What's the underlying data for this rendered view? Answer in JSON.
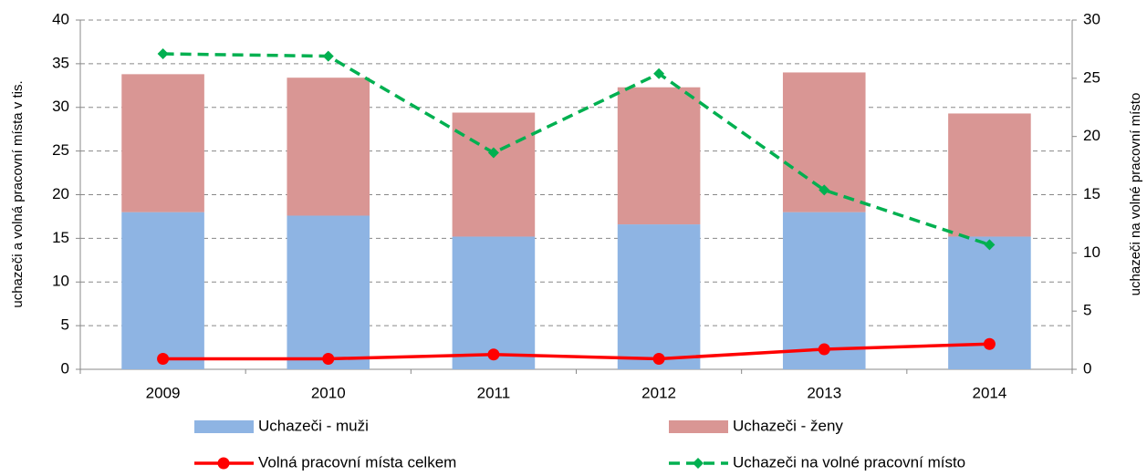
{
  "chart_data": {
    "type": "bar",
    "y_label": "uchazeči a volná pracovní místa v tis.",
    "y2_label": "uchazeči na volné pracovní místo",
    "categories": [
      "2009",
      "2010",
      "2011",
      "2012",
      "2013",
      "2014"
    ],
    "series": [
      {
        "name": "Uchazeči - muži",
        "type": "bar",
        "color": "#8eb4e3",
        "values": [
          18,
          17.6,
          15.2,
          16.6,
          18,
          15.2
        ]
      },
      {
        "name": "Uchazeči - ženy",
        "type": "bar",
        "color": "#d99694",
        "values": [
          15.8,
          15.8,
          14.2,
          15.7,
          16.0,
          14.1
        ]
      },
      {
        "name": "Volná pracovní místa celkem",
        "type": "line",
        "color": "#ff0000",
        "values": [
          1.2,
          1.2,
          1.7,
          1.2,
          2.3,
          2.9
        ]
      },
      {
        "name": "Uchazeči na volné pracovní místo",
        "type": "line",
        "dashed": true,
        "axis": "y2",
        "color": "#00b050",
        "values": [
          27.1,
          26.9,
          18.6,
          25.4,
          15.4,
          10.7
        ]
      }
    ],
    "ylim": [
      0,
      40
    ],
    "yticks": [
      0,
      5,
      10,
      15,
      20,
      25,
      30,
      35,
      40
    ],
    "y2lim": [
      0,
      30
    ],
    "y2ticks": [
      0,
      5,
      10,
      15,
      20,
      25,
      30
    ],
    "grid": true,
    "stacked": true,
    "legend": "bottom"
  }
}
